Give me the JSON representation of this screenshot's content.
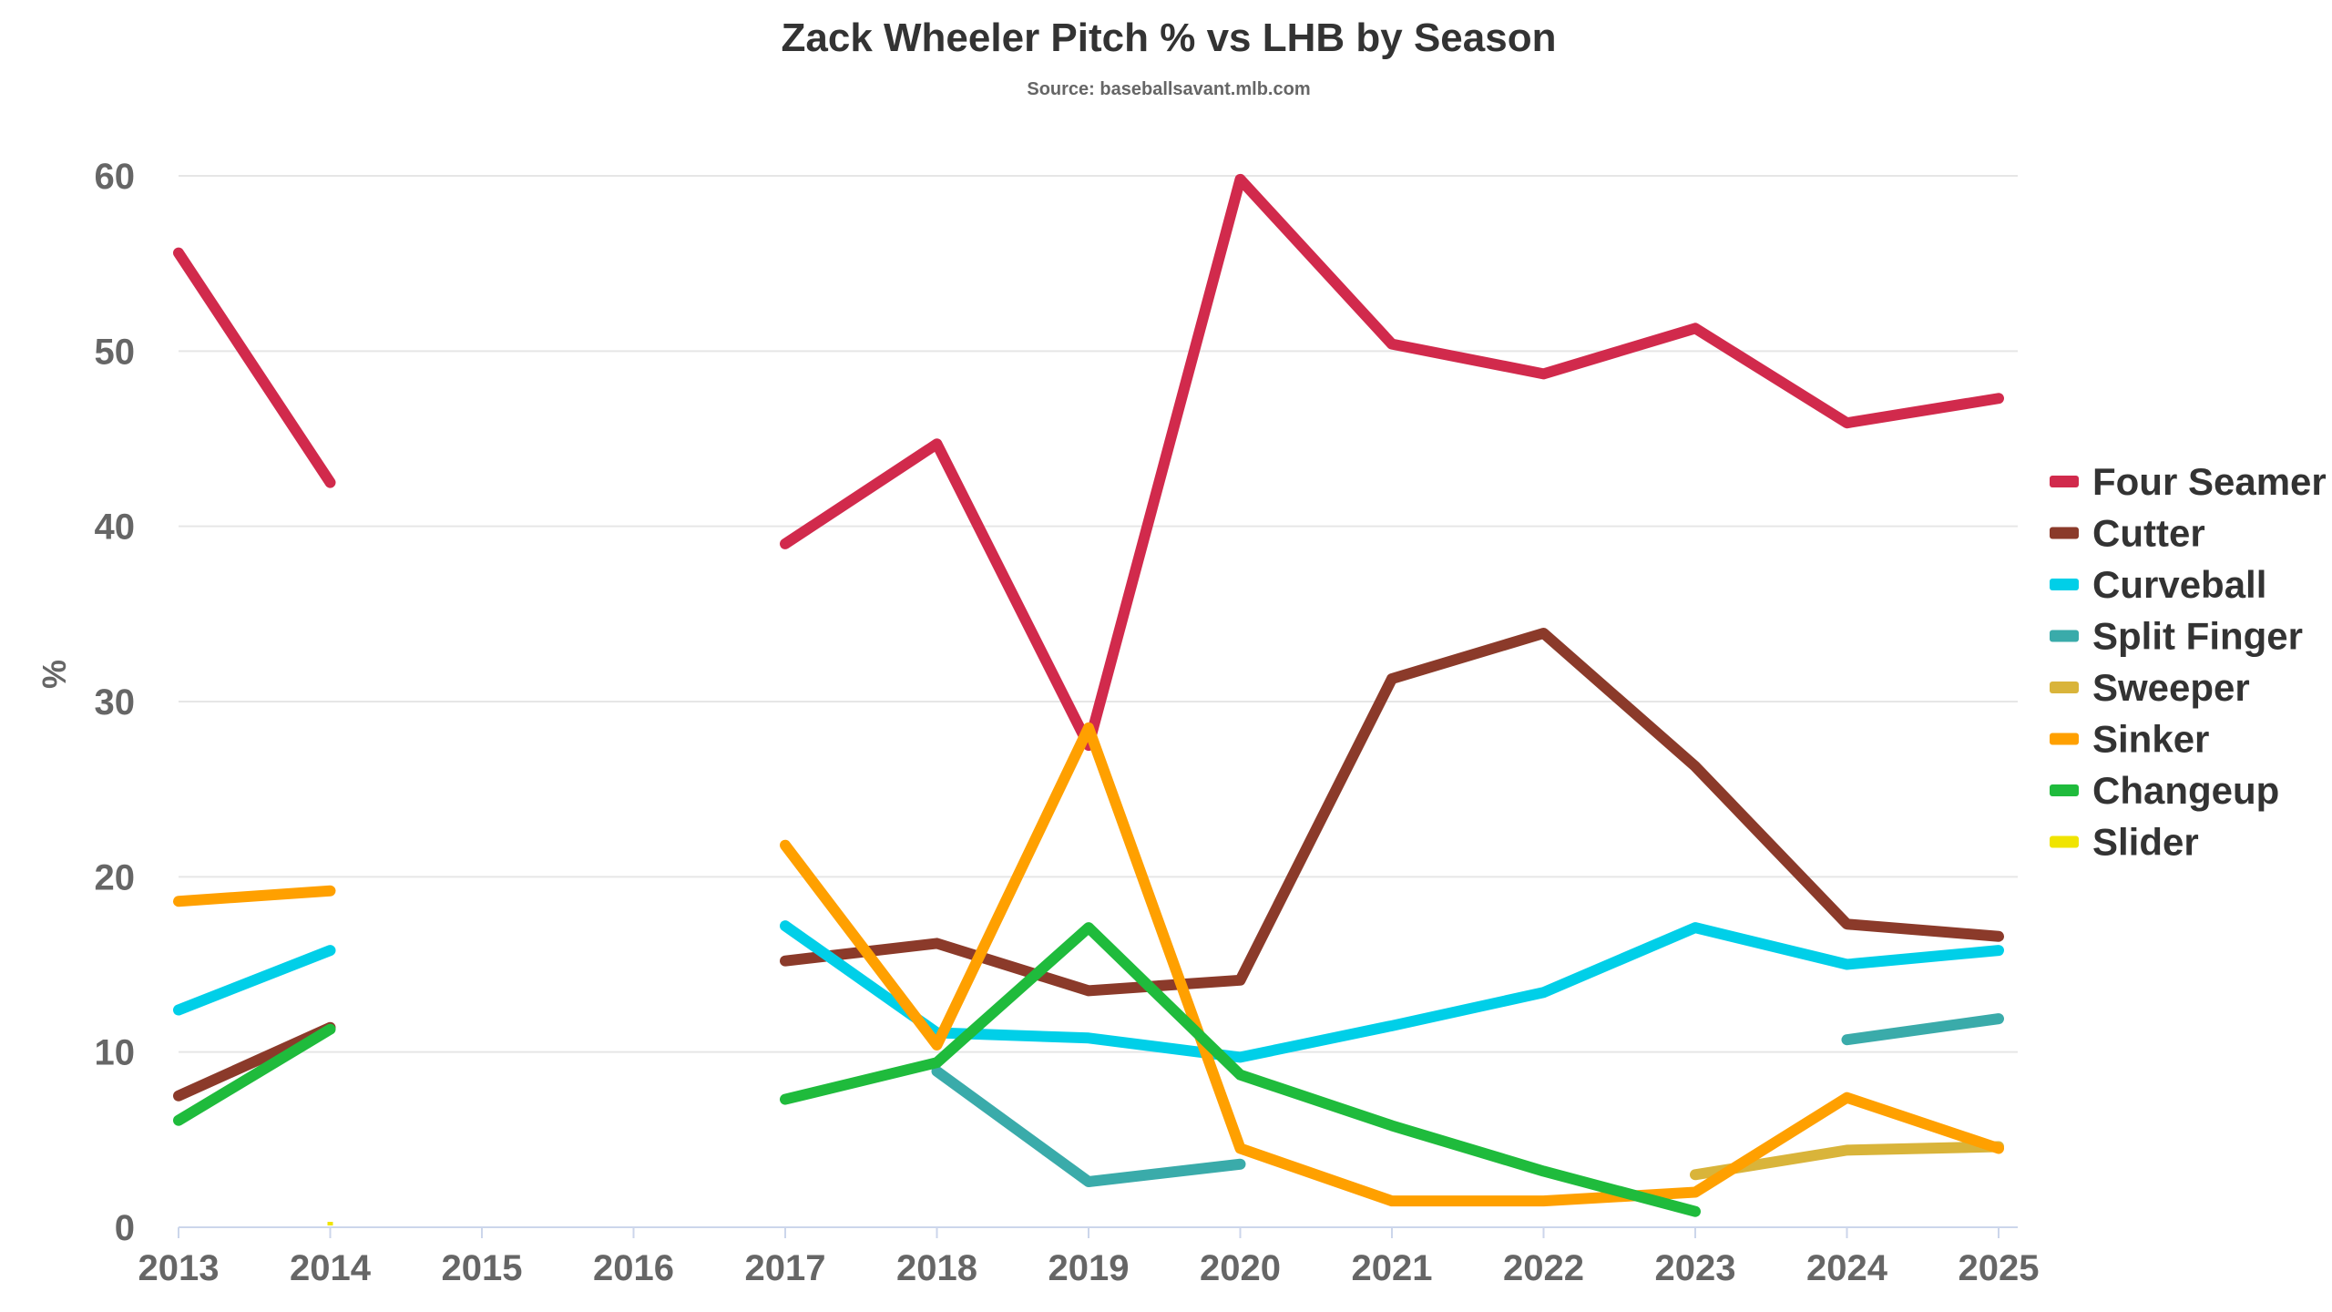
{
  "chart_data": {
    "type": "line",
    "title": "Zack Wheeler Pitch % vs LHB by Season",
    "subtitle": "Source: baseballsavant.mlb.com",
    "xlabel": "",
    "ylabel": "%",
    "ylim": [
      0,
      60
    ],
    "yticks": [
      "0",
      "10",
      "20",
      "30",
      "40",
      "50",
      "60"
    ],
    "categories": [
      "2013",
      "2014",
      "2015",
      "2016",
      "2017",
      "2018",
      "2019",
      "2020",
      "2021",
      "2022",
      "2023",
      "2024",
      "2025"
    ],
    "grid": "horizontal",
    "legend_position": "right",
    "series": [
      {
        "name": "Four Seamer",
        "color": "#d12a4c",
        "values": [
          55.6,
          42.5,
          null,
          null,
          39.0,
          44.7,
          27.5,
          59.8,
          50.4,
          48.7,
          51.3,
          45.9,
          47.3
        ]
      },
      {
        "name": "Cutter",
        "color": "#8b3a2a",
        "values": [
          7.5,
          11.4,
          null,
          null,
          15.2,
          16.2,
          13.5,
          14.1,
          31.3,
          33.9,
          26.3,
          17.3,
          16.6
        ]
      },
      {
        "name": "Curveball",
        "color": "#00cfe8",
        "values": [
          12.4,
          15.8,
          null,
          null,
          17.2,
          11.1,
          10.8,
          9.7,
          11.5,
          13.4,
          17.1,
          15.0,
          15.8
        ]
      },
      {
        "name": "Split Finger",
        "color": "#3aabaa",
        "values": [
          null,
          null,
          null,
          null,
          null,
          8.9,
          2.6,
          3.6,
          null,
          null,
          null,
          10.7,
          11.9
        ]
      },
      {
        "name": "Sweeper",
        "color": "#d9b43a",
        "values": [
          null,
          null,
          null,
          null,
          null,
          null,
          null,
          null,
          null,
          null,
          3.0,
          4.4,
          4.6
        ]
      },
      {
        "name": "Sinker",
        "color": "#ffa000",
        "values": [
          18.6,
          19.2,
          null,
          null,
          21.8,
          10.4,
          28.5,
          4.5,
          1.5,
          1.5,
          2.0,
          7.4,
          4.5
        ]
      },
      {
        "name": "Changeup",
        "color": "#1fbb3c",
        "values": [
          6.1,
          11.3,
          null,
          null,
          7.3,
          9.4,
          17.1,
          8.7,
          5.8,
          3.2,
          0.9,
          null,
          null
        ]
      },
      {
        "name": "Slider",
        "color": "#f0e400",
        "values": [
          null,
          0.1,
          null,
          null,
          null,
          null,
          null,
          null,
          null,
          null,
          null,
          null,
          null
        ]
      }
    ]
  }
}
